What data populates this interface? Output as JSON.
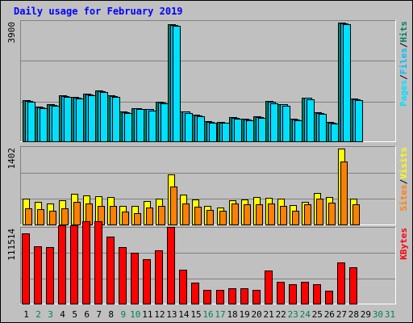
{
  "title": "Daily usage for February 2019",
  "colors": {
    "background": "#c0c0c0",
    "hits": "#00805c",
    "files": "#00c0ff",
    "pages": "#00e0ff",
    "visits": "#ffff00",
    "sites": "#ff8000",
    "kbytes": "#ff0000",
    "weekday_label": "#000000",
    "weekend_label": "#00805c"
  },
  "chart_data": [
    {
      "type": "bar",
      "panel": "hits-files-pages",
      "ymax_label": "3900",
      "right_label": [
        "Pages",
        "/",
        "Files",
        "/",
        "Hits"
      ],
      "categories": [
        "1",
        "2",
        "3",
        "4",
        "5",
        "6",
        "7",
        "8",
        "9",
        "10",
        "11",
        "12",
        "13",
        "14",
        "15",
        "16",
        "17",
        "18",
        "19",
        "20",
        "21",
        "22",
        "23",
        "24",
        "25",
        "26",
        "27",
        "28",
        "29",
        "30",
        "31"
      ],
      "series": [
        {
          "name": "Hits",
          "values": [
            1340,
            1140,
            1220,
            1500,
            1450,
            1560,
            1660,
            1500,
            980,
            1100,
            1070,
            1290,
            3850,
            990,
            880,
            650,
            640,
            790,
            730,
            810,
            1320,
            1230,
            730,
            1440,
            950,
            630,
            3910,
            1400,
            0,
            0,
            0
          ]
        },
        {
          "name": "Files",
          "values": [
            1320,
            1110,
            1200,
            1480,
            1440,
            1540,
            1640,
            1480,
            960,
            1080,
            1050,
            1270,
            3830,
            970,
            860,
            630,
            620,
            770,
            710,
            790,
            1290,
            1210,
            710,
            1420,
            930,
            610,
            3880,
            1380,
            0,
            0,
            0
          ]
        },
        {
          "name": "Pages",
          "values": [
            1290,
            1080,
            1170,
            1450,
            1410,
            1510,
            1610,
            1450,
            930,
            1050,
            1020,
            1240,
            3800,
            940,
            830,
            600,
            600,
            740,
            690,
            760,
            1260,
            1180,
            690,
            1390,
            900,
            580,
            3850,
            1350,
            0,
            0,
            0
          ]
        }
      ]
    },
    {
      "type": "bar",
      "panel": "visits-sites",
      "ymax_label": "1402",
      "right_label": [
        "Sites",
        "/",
        "Visits"
      ],
      "categories": [
        "1",
        "2",
        "3",
        "4",
        "5",
        "6",
        "7",
        "8",
        "9",
        "10",
        "11",
        "12",
        "13",
        "14",
        "15",
        "16",
        "17",
        "18",
        "19",
        "20",
        "21",
        "22",
        "23",
        "24",
        "25",
        "26",
        "27",
        "28",
        "29",
        "30",
        "31"
      ],
      "series": [
        {
          "name": "Visits",
          "values": [
            470,
            420,
            390,
            450,
            570,
            530,
            520,
            510,
            350,
            340,
            430,
            470,
            920,
            550,
            460,
            340,
            310,
            450,
            460,
            510,
            490,
            480,
            360,
            420,
            580,
            510,
            1400,
            470,
            0,
            0,
            0
          ]
        },
        {
          "name": "Sites",
          "values": [
            300,
            280,
            260,
            300,
            420,
            390,
            350,
            340,
            240,
            210,
            320,
            340,
            700,
            390,
            330,
            270,
            250,
            390,
            380,
            380,
            390,
            350,
            260,
            370,
            480,
            400,
            1170,
            380,
            0,
            0,
            0
          ]
        }
      ]
    },
    {
      "type": "bar",
      "panel": "kbytes",
      "ymax_label": "111514",
      "right_label": [
        "KBytes"
      ],
      "categories": [
        "1",
        "2",
        "3",
        "4",
        "5",
        "6",
        "7",
        "8",
        "9",
        "10",
        "11",
        "12",
        "13",
        "14",
        "15",
        "16",
        "17",
        "18",
        "19",
        "20",
        "21",
        "22",
        "23",
        "24",
        "25",
        "26",
        "27",
        "28",
        "29",
        "30",
        "31"
      ],
      "series": [
        {
          "name": "KBytes",
          "values": [
            105000,
            86000,
            85000,
            117000,
            118000,
            124000,
            124000,
            101000,
            85000,
            76000,
            67000,
            80000,
            115000,
            51000,
            32000,
            20000,
            20000,
            23000,
            23000,
            20000,
            50000,
            33000,
            29000,
            33000,
            29000,
            19000,
            62000,
            55000,
            0,
            0,
            0
          ]
        }
      ]
    }
  ],
  "x_labels": [
    {
      "text": "1",
      "weekend": false
    },
    {
      "text": "2",
      "weekend": true
    },
    {
      "text": "3",
      "weekend": true
    },
    {
      "text": "4",
      "weekend": false
    },
    {
      "text": "5",
      "weekend": false
    },
    {
      "text": "6",
      "weekend": false
    },
    {
      "text": "7",
      "weekend": false
    },
    {
      "text": "8",
      "weekend": false
    },
    {
      "text": "9",
      "weekend": true
    },
    {
      "text": "10",
      "weekend": true
    },
    {
      "text": "11",
      "weekend": false
    },
    {
      "text": "12",
      "weekend": false
    },
    {
      "text": "13",
      "weekend": false
    },
    {
      "text": "14",
      "weekend": false
    },
    {
      "text": "15",
      "weekend": false
    },
    {
      "text": "16",
      "weekend": true
    },
    {
      "text": "17",
      "weekend": true
    },
    {
      "text": "18",
      "weekend": false
    },
    {
      "text": "19",
      "weekend": false
    },
    {
      "text": "20",
      "weekend": false
    },
    {
      "text": "21",
      "weekend": false
    },
    {
      "text": "22",
      "weekend": false
    },
    {
      "text": "23",
      "weekend": true
    },
    {
      "text": "24",
      "weekend": true
    },
    {
      "text": "25",
      "weekend": false
    },
    {
      "text": "26",
      "weekend": false
    },
    {
      "text": "27",
      "weekend": false
    },
    {
      "text": "28",
      "weekend": false
    },
    {
      "text": "29",
      "weekend": false
    },
    {
      "text": "30",
      "weekend": true
    },
    {
      "text": "31",
      "weekend": true
    }
  ]
}
